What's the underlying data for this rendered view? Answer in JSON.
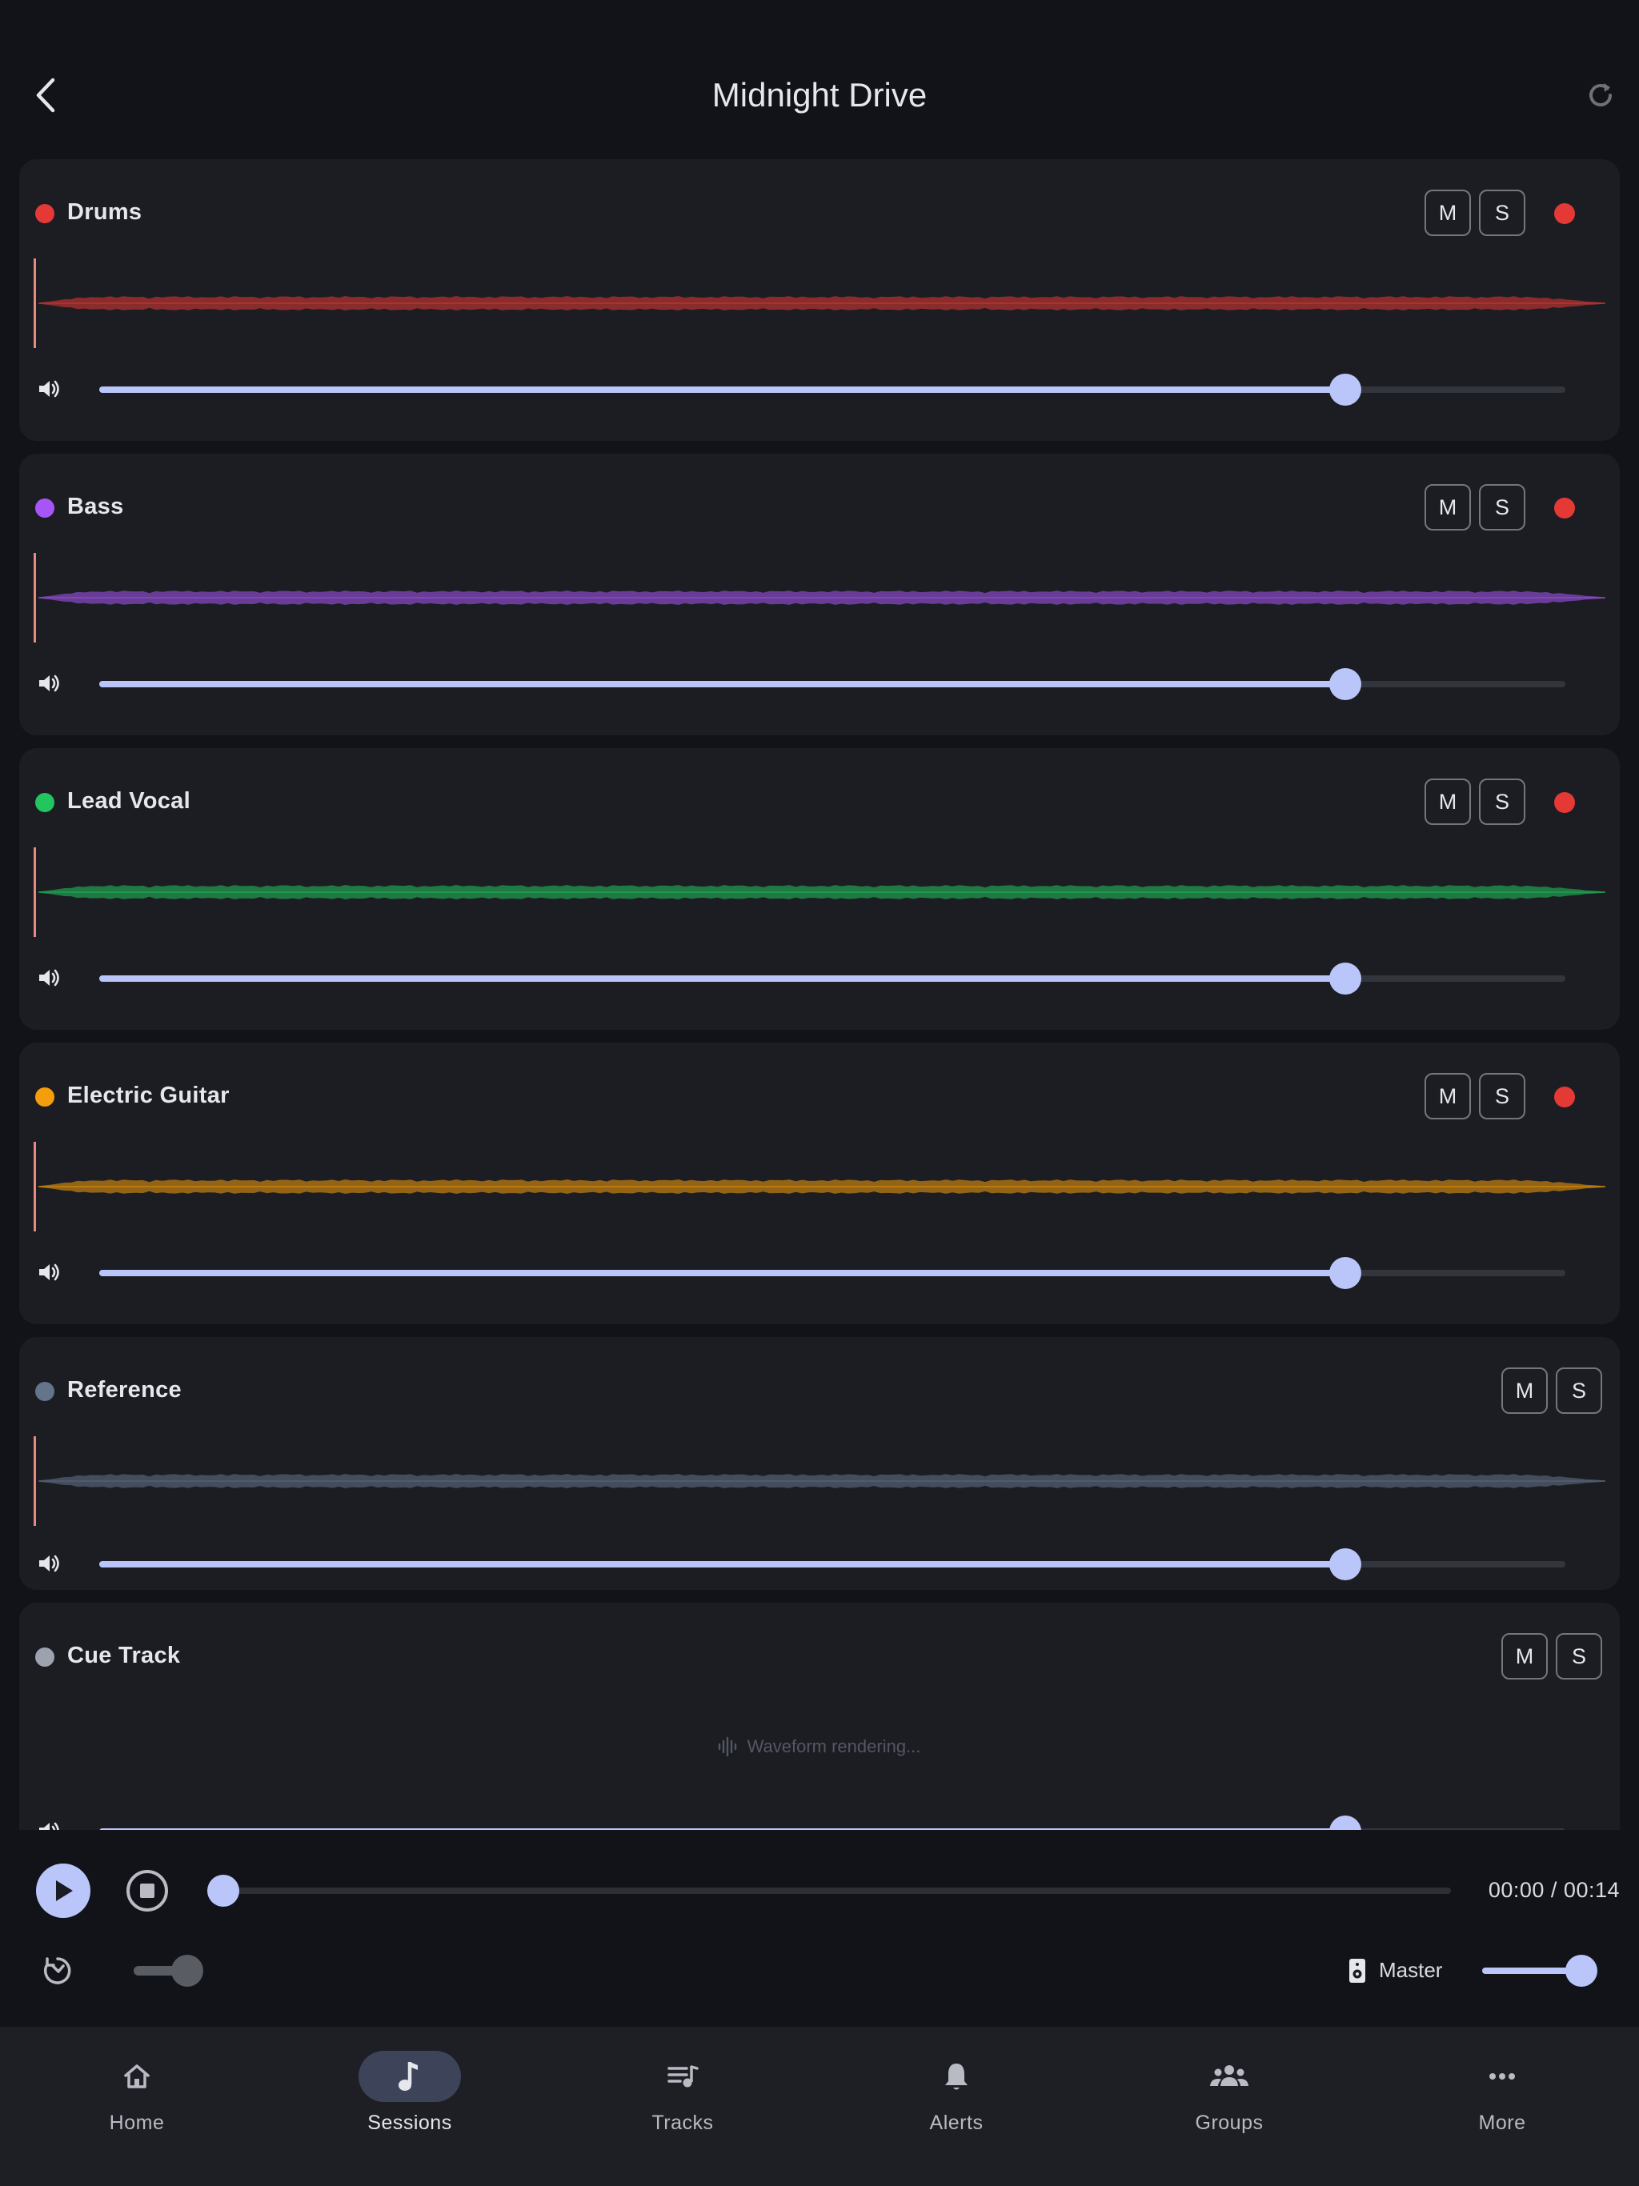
{
  "header": {
    "title": "Midnight Drive",
    "back_icon": "chevron-left-icon",
    "refresh_icon": "refresh-icon"
  },
  "tracks": [
    {
      "name": "Drums",
      "color": "#e53935",
      "mute_label": "M",
      "solo_label": "S",
      "record_armed": true,
      "waveform": "rendered",
      "volume": 0.85
    },
    {
      "name": "Bass",
      "color": "#a855f7",
      "mute_label": "M",
      "solo_label": "S",
      "record_armed": true,
      "waveform": "rendered",
      "volume": 0.85
    },
    {
      "name": "Lead Vocal",
      "color": "#22c55e",
      "mute_label": "M",
      "solo_label": "S",
      "record_armed": true,
      "waveform": "rendered",
      "volume": 0.85
    },
    {
      "name": "Electric Guitar",
      "color": "#f59e0b",
      "mute_label": "M",
      "solo_label": "S",
      "record_armed": true,
      "waveform": "rendered",
      "volume": 0.85
    },
    {
      "name": "Reference",
      "color": "#64748b",
      "mute_label": "M",
      "solo_label": "S",
      "record_armed": false,
      "waveform": "rendered",
      "volume": 0.85
    },
    {
      "name": "Cue Track",
      "color": "#9ca3af",
      "mute_label": "M",
      "solo_label": "S",
      "record_armed": false,
      "waveform": "rendering",
      "rendering_text": "Waveform rendering...",
      "volume": 0.85
    }
  ],
  "transport": {
    "time": "00:00 / 00:14",
    "position": 0.0,
    "master_label": "Master",
    "master_volume": 1.0,
    "playback_rate_enabled": false
  },
  "nav": {
    "items": [
      {
        "label": "Home",
        "icon": "home-icon",
        "active": false
      },
      {
        "label": "Sessions",
        "icon": "music-note-icon",
        "active": true
      },
      {
        "label": "Tracks",
        "icon": "playlist-icon",
        "active": false
      },
      {
        "label": "Alerts",
        "icon": "bell-icon",
        "active": false
      },
      {
        "label": "Groups",
        "icon": "groups-icon",
        "active": false
      },
      {
        "label": "More",
        "icon": "more-horiz-icon",
        "active": false
      }
    ]
  },
  "theme": {
    "accent": "#bac6fa",
    "background": "#111318",
    "card": "#1c1d23",
    "record": "#e53935"
  }
}
